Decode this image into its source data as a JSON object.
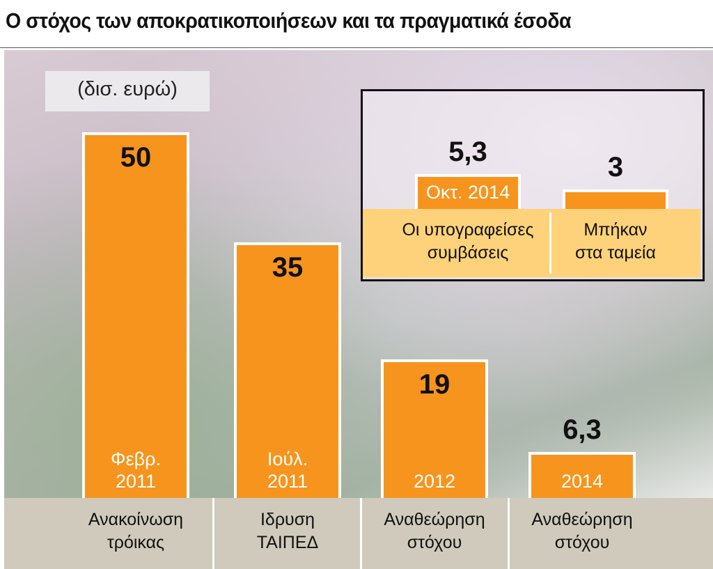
{
  "chart_data": [
    {
      "type": "bar",
      "title": "Ο στόχος των αποκρατικοποιήσεων και τα πραγματικά έσοδα",
      "subtitle": "(δισ. ευρώ)",
      "categories": [
        "Ανακοίνωση\nτρόικας",
        "Ιδρυση\nΤΑΙΠΕΔ",
        "Αναθεώρηση\nστόχου",
        "Αναθεώρηση\nστόχου"
      ],
      "values": [
        50,
        35,
        19,
        6.3
      ],
      "value_labels": [
        "50",
        "35",
        "19",
        "6,3"
      ],
      "bar_labels": [
        "Φεβρ.\n2011",
        "Ιούλ.\n2011",
        "2012",
        "2014"
      ],
      "color": "#f7941d"
    },
    {
      "type": "bar",
      "categories": [
        "Οι υπογραφείσες\nσυμβάσεις",
        "Μπήκαν\nστα ταμεία"
      ],
      "values": [
        5.3,
        3
      ],
      "value_labels": [
        "5,3",
        "3"
      ],
      "bar_labels": [
        "Οκτ. 2014",
        null
      ],
      "color": "#f7941d"
    }
  ]
}
